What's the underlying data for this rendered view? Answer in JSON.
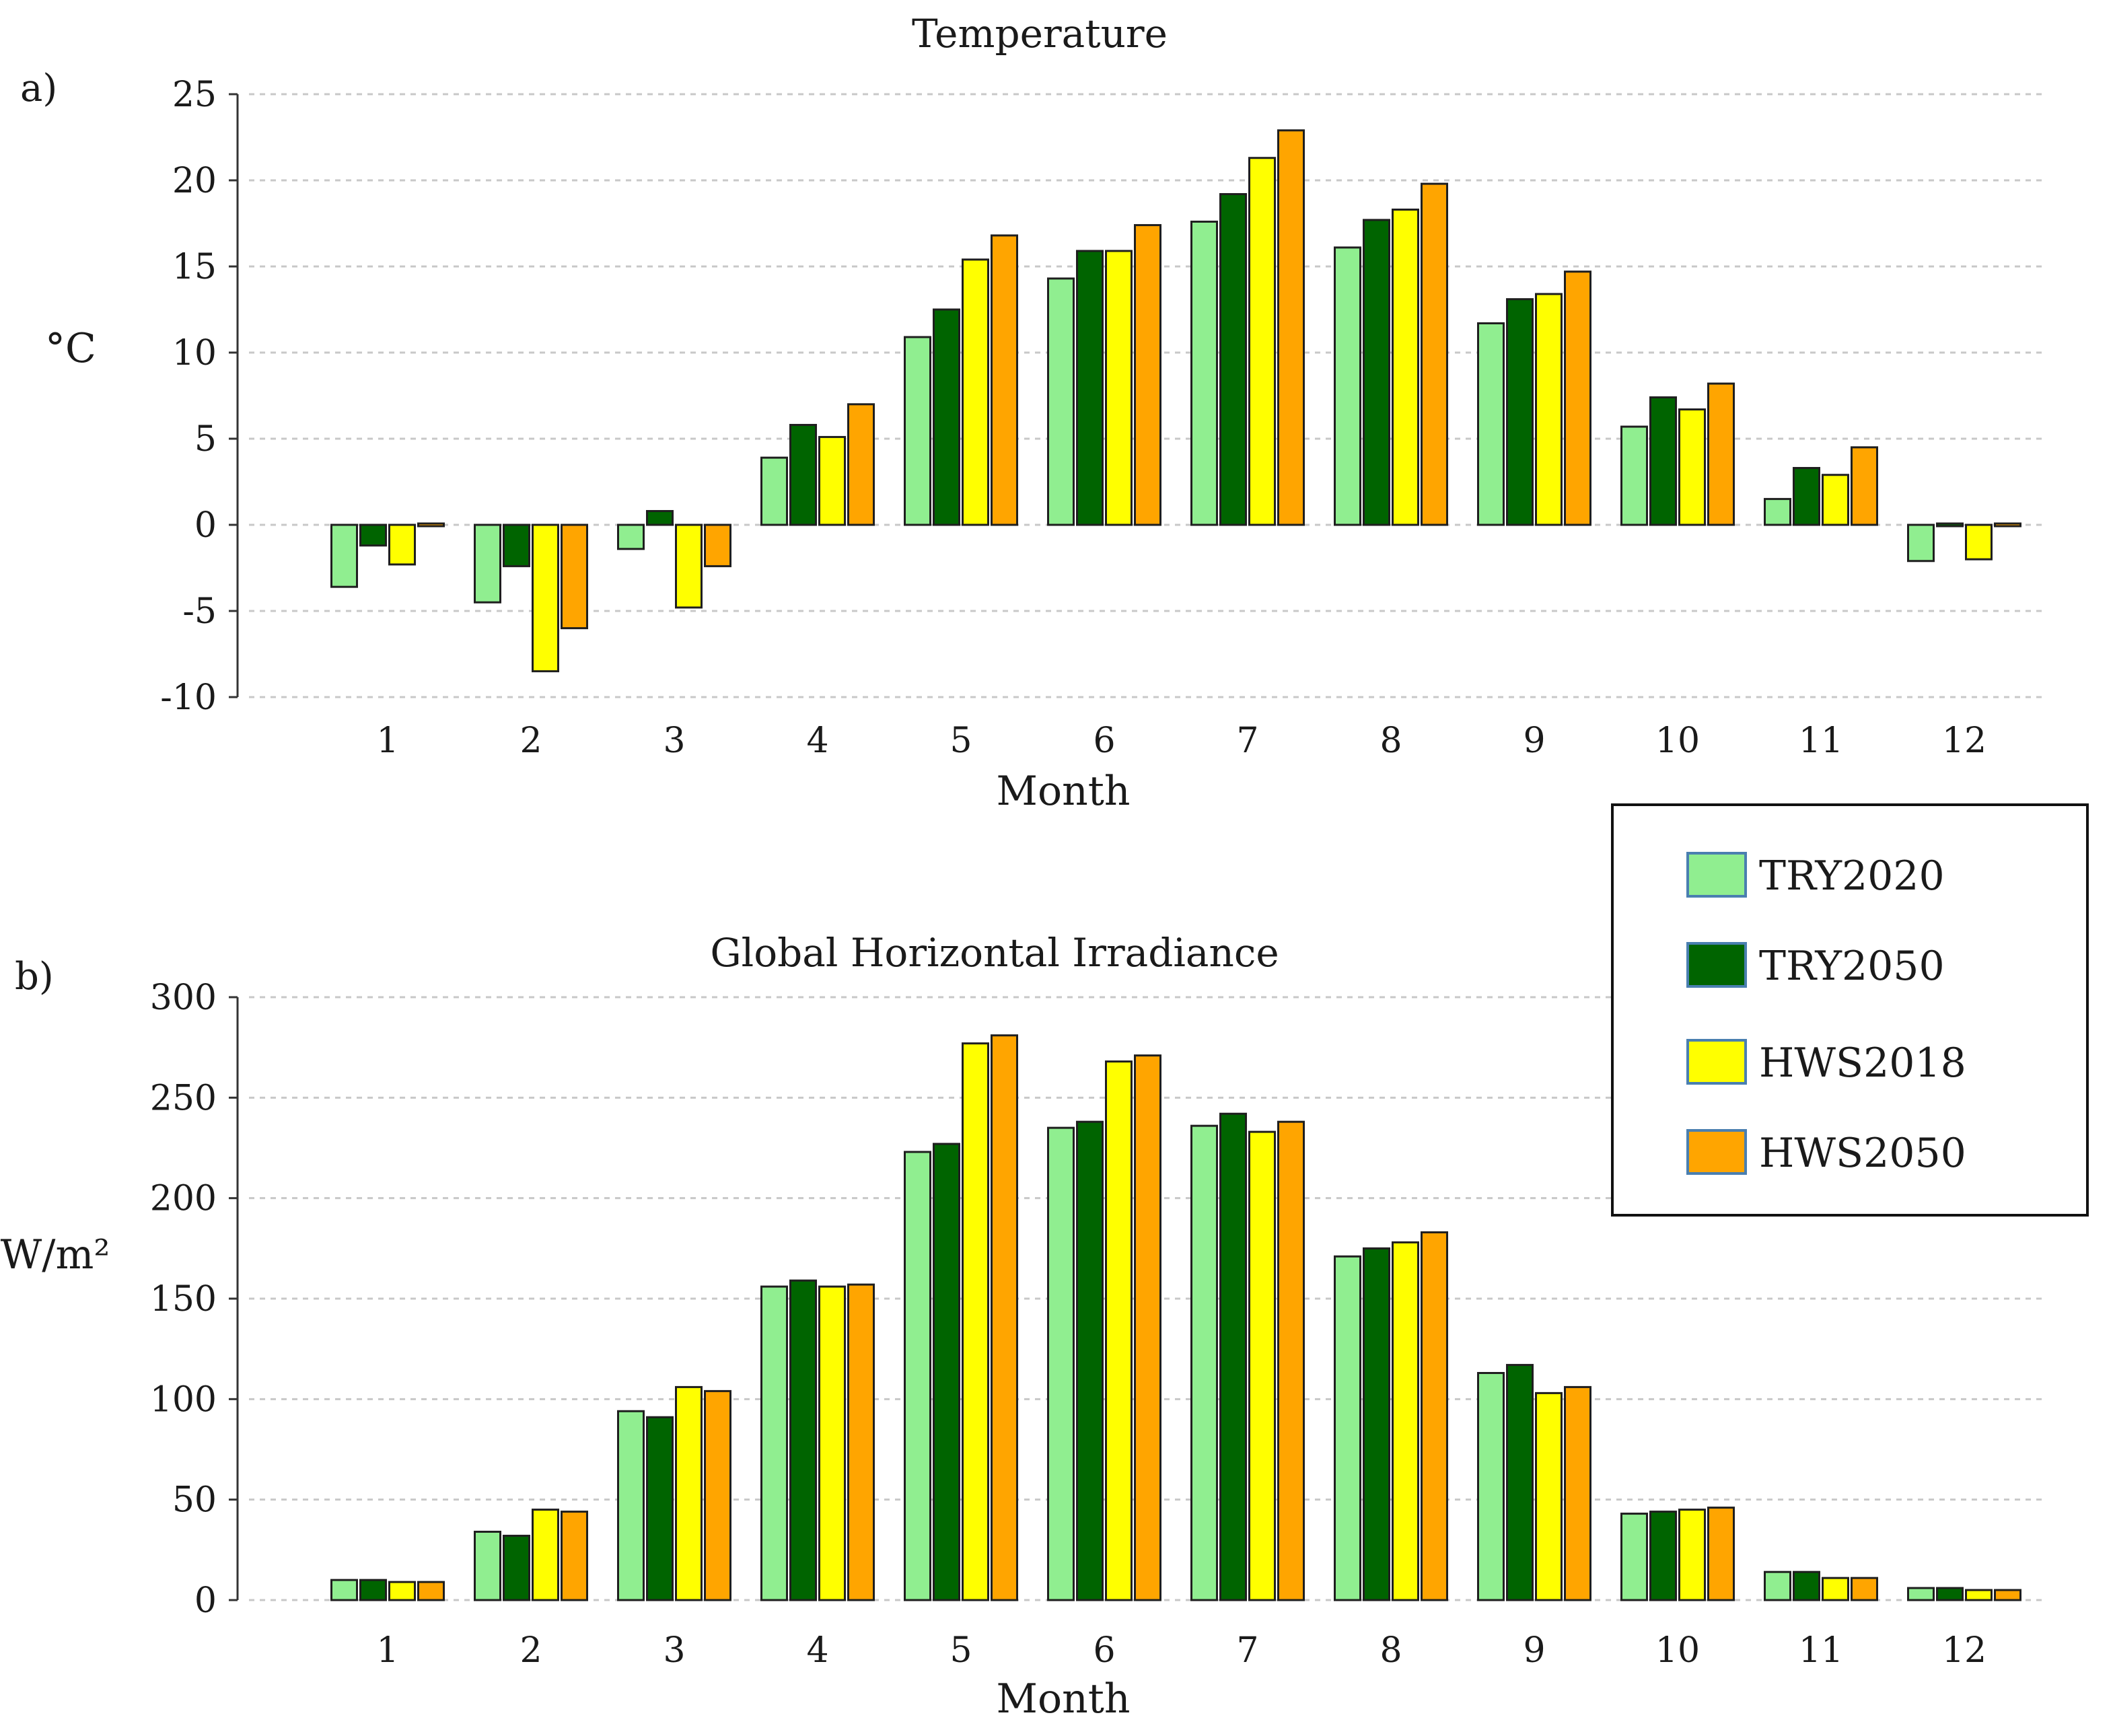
{
  "chart_data": [
    {
      "type": "bar",
      "panel_label": "a)",
      "title": "Temperature",
      "xlabel": "Month",
      "ylabel": "°C",
      "ylim": [
        -10,
        25
      ],
      "yticks": [
        -10,
        -5,
        0,
        5,
        10,
        15,
        20,
        25
      ],
      "grid": true,
      "categories": [
        "1",
        "2",
        "3",
        "4",
        "5",
        "6",
        "7",
        "8",
        "9",
        "10",
        "11",
        "12"
      ],
      "series": [
        {
          "name": "TRY2020",
          "color": "#90ee90",
          "values": [
            -3.6,
            -4.5,
            -1.4,
            3.9,
            10.9,
            14.3,
            17.6,
            16.1,
            11.7,
            5.7,
            1.5,
            -2.1
          ]
        },
        {
          "name": "TRY2050",
          "color": "#006400",
          "values": [
            -1.2,
            -2.4,
            0.8,
            5.8,
            12.5,
            15.9,
            19.2,
            17.7,
            13.1,
            7.4,
            3.3,
            0.0
          ]
        },
        {
          "name": "HWS2018",
          "color": "#ffff00",
          "values": [
            -2.3,
            -8.5,
            -4.8,
            5.1,
            15.4,
            15.9,
            21.3,
            18.3,
            13.4,
            6.7,
            2.9,
            -2.0
          ]
        },
        {
          "name": "HWS2050",
          "color": "#ffa500",
          "values": [
            0.1,
            -6.0,
            -2.4,
            7.0,
            16.8,
            17.4,
            22.9,
            19.8,
            14.7,
            8.2,
            4.5,
            0.1
          ]
        }
      ]
    },
    {
      "type": "bar",
      "panel_label": "b)",
      "title": "Global Horizontal Irradiance",
      "xlabel": "Month",
      "ylabel": "W/m²",
      "ylim": [
        0,
        300
      ],
      "yticks": [
        0,
        50,
        100,
        150,
        200,
        250,
        300
      ],
      "grid": true,
      "categories": [
        "1",
        "2",
        "3",
        "4",
        "5",
        "6",
        "7",
        "8",
        "9",
        "10",
        "11",
        "12"
      ],
      "series": [
        {
          "name": "TRY2020",
          "color": "#90ee90",
          "values": [
            10,
            34,
            94,
            156,
            223,
            235,
            236,
            171,
            113,
            43,
            14,
            6
          ]
        },
        {
          "name": "TRY2050",
          "color": "#006400",
          "values": [
            10,
            32,
            91,
            159,
            227,
            238,
            242,
            175,
            117,
            44,
            14,
            6
          ]
        },
        {
          "name": "HWS2018",
          "color": "#ffff00",
          "values": [
            9,
            45,
            106,
            156,
            277,
            268,
            233,
            178,
            103,
            45,
            11,
            5
          ]
        },
        {
          "name": "HWS2050",
          "color": "#ffa500",
          "values": [
            9,
            44,
            104,
            157,
            281,
            271,
            238,
            183,
            106,
            46,
            11,
            5
          ]
        }
      ]
    }
  ],
  "legend": {
    "placement": "right, between panels",
    "entries": [
      {
        "label": "TRY2020",
        "color": "#90ee90"
      },
      {
        "label": "TRY2050",
        "color": "#006400"
      },
      {
        "label": "HWS2018",
        "color": "#ffff00"
      },
      {
        "label": "HWS2050",
        "color": "#ffa500"
      }
    ]
  }
}
